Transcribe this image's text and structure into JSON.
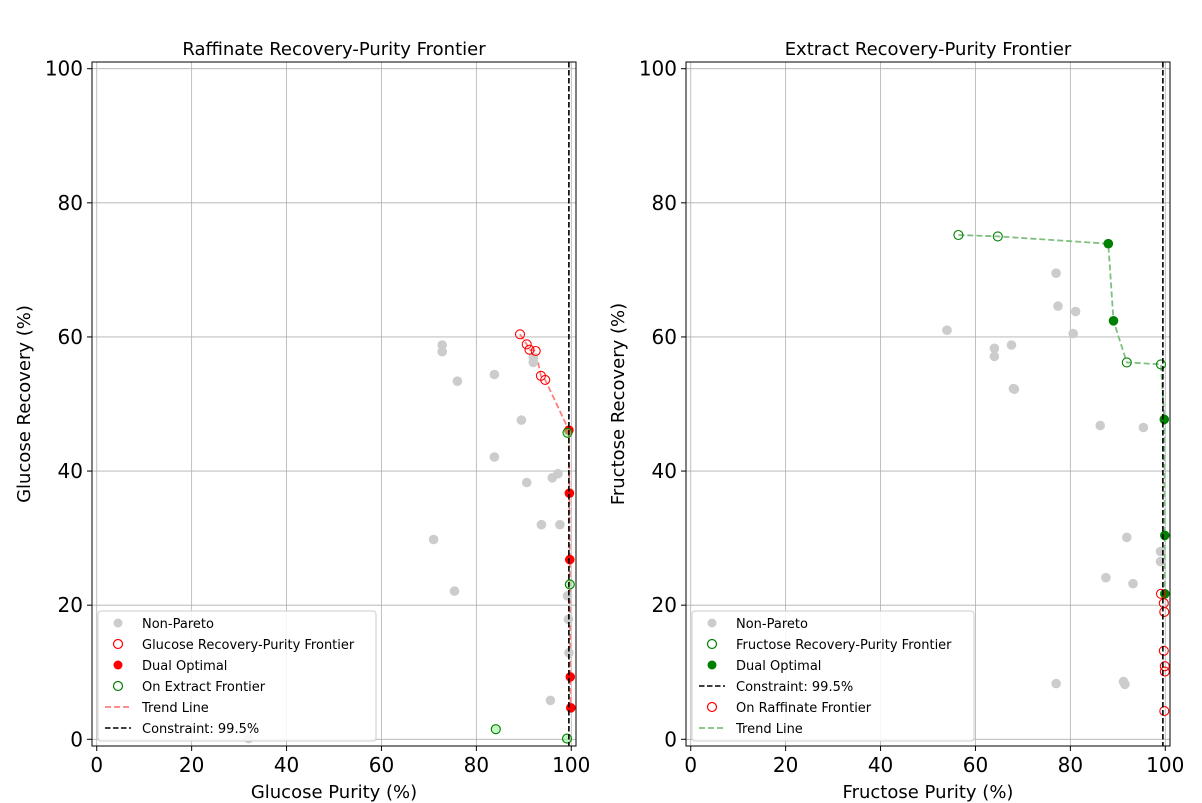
{
  "chart_data": [
    {
      "type": "scatter",
      "title": "Raffinate Recovery-Purity Frontier",
      "xlabel": "Glucose Purity (%)",
      "ylabel": "Glucose Recovery (%)",
      "xlim": [
        -1,
        101
      ],
      "ylim": [
        -1,
        101
      ],
      "xticks": [
        0,
        20,
        40,
        60,
        80,
        100
      ],
      "yticks": [
        0,
        20,
        40,
        60,
        80,
        100
      ],
      "grid": true,
      "legend_position": "lower-left",
      "constraint": 99.5,
      "series": [
        {
          "name": "Non-Pareto",
          "marker": "filled-circle",
          "color": "#cccccc",
          "points": [
            [
              72.8,
              58.8
            ],
            [
              72.8,
              57.8
            ],
            [
              76.0,
              53.4
            ],
            [
              83.8,
              54.4
            ],
            [
              92.0,
              57.0
            ],
            [
              92.0,
              56.2
            ],
            [
              89.5,
              47.6
            ],
            [
              83.8,
              42.1
            ],
            [
              90.6,
              38.3
            ],
            [
              96.0,
              39.0
            ],
            [
              97.2,
              39.6
            ],
            [
              93.7,
              32.0
            ],
            [
              97.6,
              32.0
            ],
            [
              71.0,
              29.8
            ],
            [
              75.4,
              22.1
            ],
            [
              99.2,
              21.4
            ],
            [
              99.5,
              12.9
            ],
            [
              99.4,
              17.9
            ],
            [
              95.6,
              5.8
            ],
            [
              32.0,
              0.1
            ]
          ]
        },
        {
          "name": "Glucose Recovery-Purity Frontier",
          "marker": "open-circle",
          "color": "#ff0000",
          "points": [
            [
              89.2,
              60.4
            ],
            [
              90.6,
              58.9
            ],
            [
              91.2,
              58.1
            ],
            [
              92.5,
              57.9
            ],
            [
              93.6,
              54.2
            ],
            [
              94.5,
              53.6
            ]
          ]
        },
        {
          "name": "Dual Optimal",
          "marker": "filled-circle",
          "color": "#ff0000",
          "points": [
            [
              99.5,
              46.1
            ],
            [
              99.6,
              36.7
            ],
            [
              99.7,
              26.8
            ],
            [
              99.8,
              9.3
            ],
            [
              99.9,
              4.7
            ]
          ]
        },
        {
          "name": "On Extract Frontier",
          "marker": "open-circle",
          "color": "#008000",
          "points": [
            [
              99.2,
              45.7
            ],
            [
              99.7,
              23.1
            ],
            [
              84.1,
              1.5
            ],
            [
              99.1,
              0.1
            ]
          ]
        },
        {
          "name": "Trend Line",
          "marker": "dashed-line",
          "color": "#ff7f7f",
          "points": [
            [
              89.2,
              60.4
            ],
            [
              90.6,
              58.9
            ],
            [
              91.2,
              58.1
            ],
            [
              92.5,
              57.9
            ],
            [
              93.6,
              54.2
            ],
            [
              94.5,
              53.6
            ],
            [
              99.5,
              46.1
            ],
            [
              99.6,
              36.7
            ],
            [
              99.7,
              26.8
            ],
            [
              99.8,
              9.3
            ],
            [
              99.9,
              4.7
            ]
          ]
        }
      ],
      "legend": [
        "Non-Pareto",
        "Glucose Recovery-Purity Frontier",
        "Dual Optimal",
        "On Extract Frontier",
        "Trend Line",
        "Constraint: 99.5%"
      ]
    },
    {
      "type": "scatter",
      "title": "Extract Recovery-Purity Frontier",
      "xlabel": "Fructose Purity (%)",
      "ylabel": "Fructose Recovery (%)",
      "xlim": [
        -1,
        101
      ],
      "ylim": [
        -1,
        101
      ],
      "xticks": [
        0,
        20,
        40,
        60,
        80,
        100
      ],
      "yticks": [
        0,
        20,
        40,
        60,
        80,
        100
      ],
      "grid": true,
      "legend_position": "lower-left",
      "constraint": 99.5,
      "series": [
        {
          "name": "Non-Pareto",
          "marker": "filled-circle",
          "color": "#cccccc",
          "points": [
            [
              54.0,
              61.0
            ],
            [
              64.0,
              58.3
            ],
            [
              64.0,
              57.1
            ],
            [
              67.6,
              58.8
            ],
            [
              68.0,
              52.3
            ],
            [
              68.2,
              52.2
            ],
            [
              77.0,
              69.5
            ],
            [
              77.4,
              64.6
            ],
            [
              81.1,
              63.8
            ],
            [
              80.6,
              60.5
            ],
            [
              86.3,
              46.8
            ],
            [
              95.4,
              46.5
            ],
            [
              91.9,
              30.1
            ],
            [
              99.0,
              28.0
            ],
            [
              99.0,
              26.5
            ],
            [
              87.5,
              24.1
            ],
            [
              93.2,
              23.2
            ],
            [
              77.0,
              8.3
            ],
            [
              91.2,
              8.6
            ],
            [
              91.5,
              8.2
            ]
          ]
        },
        {
          "name": "Fructose Recovery-Purity Frontier",
          "marker": "open-circle",
          "color": "#008000",
          "points": [
            [
              56.4,
              75.2
            ],
            [
              64.7,
              75.0
            ],
            [
              91.9,
              56.2
            ],
            [
              99.1,
              55.9
            ]
          ]
        },
        {
          "name": "Dual Optimal",
          "marker": "filled-circle",
          "color": "#008000",
          "points": [
            [
              88.0,
              73.9
            ],
            [
              89.1,
              62.4
            ],
            [
              99.8,
              47.7
            ],
            [
              99.9,
              30.4
            ],
            [
              99.9,
              21.7
            ]
          ]
        },
        {
          "name": "Constraint: 99.5%",
          "marker": "vertical-line",
          "color": "#000000",
          "points": []
        },
        {
          "name": "On Raffinate Frontier",
          "marker": "open-circle",
          "color": "#ff0000",
          "points": [
            [
              99.1,
              21.7
            ],
            [
              99.7,
              20.3
            ],
            [
              99.8,
              19.0
            ],
            [
              99.7,
              13.2
            ],
            [
              99.9,
              10.9
            ],
            [
              99.9,
              10.1
            ],
            [
              99.8,
              4.2
            ]
          ]
        },
        {
          "name": "Trend Line",
          "marker": "dashed-line",
          "color": "#7fbf7f",
          "points": [
            [
              56.4,
              75.2
            ],
            [
              64.7,
              75.0
            ],
            [
              88.0,
              73.9
            ],
            [
              89.1,
              62.4
            ],
            [
              91.9,
              56.2
            ],
            [
              99.1,
              55.9
            ],
            [
              99.8,
              47.7
            ],
            [
              99.9,
              30.4
            ],
            [
              99.9,
              21.7
            ]
          ]
        }
      ],
      "legend": [
        "Non-Pareto",
        "Fructose Recovery-Purity Frontier",
        "Dual Optimal",
        "Constraint: 99.5%",
        "On Raffinate Frontier",
        "Trend Line"
      ]
    }
  ]
}
